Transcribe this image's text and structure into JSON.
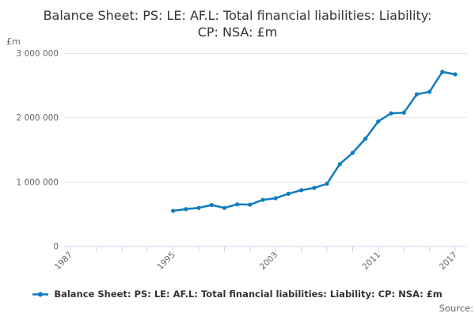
{
  "chart_data": {
    "type": "line",
    "title": "Balance Sheet: PS: LE: AF.L: Total financial liabilities: Liability: CP: NSA: £m",
    "unit_label": "£m",
    "series": [
      {
        "name": "Balance Sheet: PS: LE: AF.L: Total financial liabilities: Liability: CP: NSA: £m",
        "x": [
          1995,
          1996,
          1997,
          1998,
          1999,
          2000,
          2001,
          2002,
          2003,
          2004,
          2005,
          2006,
          2007,
          2008,
          2009,
          2010,
          2011,
          2012,
          2013,
          2014,
          2015,
          2016,
          2017
        ],
        "values": [
          555000,
          580000,
          600000,
          645000,
          600000,
          655000,
          650000,
          725000,
          750000,
          820000,
          875000,
          910000,
          975000,
          1280000,
          1455000,
          1675000,
          1945000,
          2070000,
          2080000,
          2365000,
          2405000,
          2715000,
          2675000
        ]
      }
    ],
    "xlabel": "",
    "ylabel": "£m",
    "ylim": [
      0,
      3000000
    ],
    "yticks": {
      "values": [
        0,
        1000000,
        2000000,
        3000000
      ],
      "labels": [
        "0",
        "1 000 000",
        "2 000 000",
        "3 000 000"
      ]
    },
    "xticks": {
      "values": [
        1987,
        1989,
        1991,
        1993,
        1995,
        1997,
        1999,
        2001,
        2003,
        2005,
        2007,
        2009,
        2011,
        2013,
        2015,
        2017
      ],
      "labeled": [
        1987,
        1995,
        2003,
        2011,
        2017
      ],
      "labels": [
        "1987",
        "1995",
        "2003",
        "2011",
        "2017"
      ]
    },
    "grid": "horizontal",
    "legend_position": "bottom",
    "line_color": "#107CBE",
    "marker": "circle"
  },
  "legend": {
    "label": "Balance Sheet: PS: LE: AF.L: Total financial liabilities: Liability: CP: NSA: £m"
  },
  "footer": {
    "source_label": "Source:"
  },
  "colors": {
    "accent_line": "#107CBE",
    "axis_line": "#CCD6EB",
    "gridline": "#E6E6E6",
    "tick_text": "#666666",
    "title_text": "#333333"
  }
}
